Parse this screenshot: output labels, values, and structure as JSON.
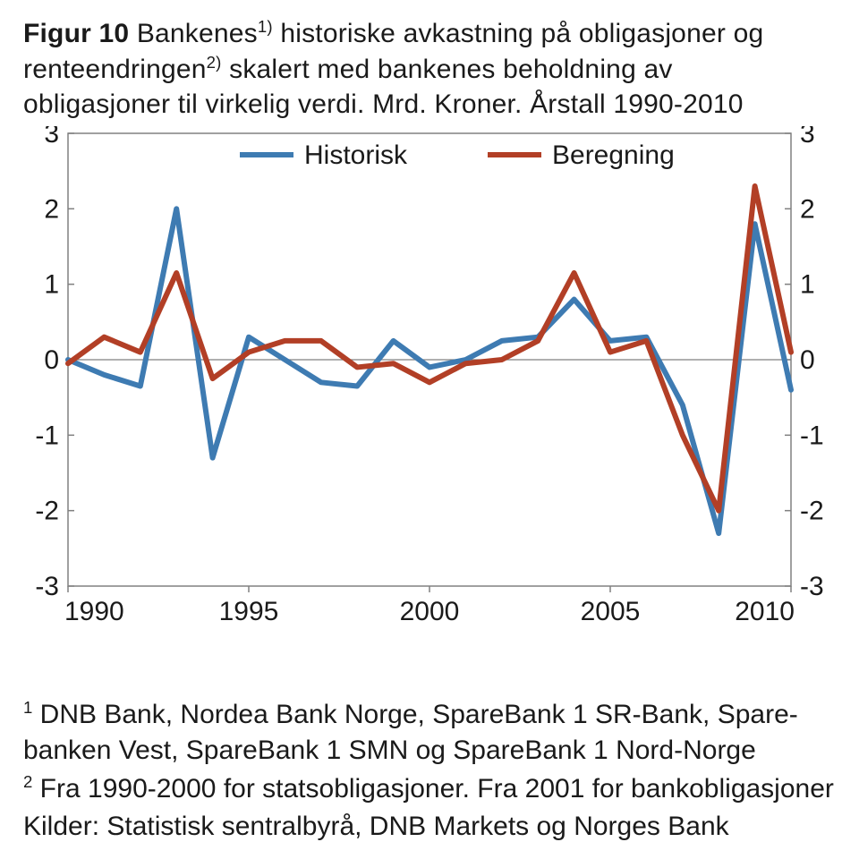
{
  "title": {
    "fig_label": "Figur 10",
    "line1_pre": " Bankenes",
    "sup1": "1)",
    "line1_post": " historiske avkastning på obligasjoner og",
    "line2_pre": "renteendringen",
    "sup2": "2)",
    "line2_post": " skalert med bankenes beholdning av",
    "line3": "obligasjoner til virkelig verdi. Mrd. Kroner. Årstall 1990-2010"
  },
  "chart": {
    "type": "line",
    "background_color": "#ffffff",
    "axis_color": "#808080",
    "zero_line_color": "#808080",
    "ylim_min": -3,
    "ylim_max": 3,
    "ytick_step": 1,
    "x_min": 1990,
    "x_max": 2010,
    "x_ticks": [
      1990,
      1995,
      2000,
      2005,
      2010
    ],
    "y_ticks": [
      3,
      2,
      1,
      0,
      -1,
      -2,
      -3
    ],
    "line_width": 6,
    "legend": {
      "items": [
        {
          "label": "Historisk",
          "color": "#3e7bb2"
        },
        {
          "label": "Beregning",
          "color": "#b23f26"
        }
      ]
    },
    "series": {
      "historisk": {
        "color": "#3e7bb2",
        "years": [
          1990,
          1991,
          1992,
          1993,
          1994,
          1995,
          1996,
          1997,
          1998,
          1999,
          2000,
          2001,
          2002,
          2003,
          2004,
          2005,
          2006,
          2007,
          2008,
          2009,
          2010
        ],
        "values": [
          0.0,
          -0.2,
          -0.35,
          2.0,
          -1.3,
          0.3,
          0.0,
          -0.3,
          -0.35,
          0.25,
          -0.1,
          0.0,
          0.25,
          0.3,
          0.8,
          0.25,
          0.3,
          -0.6,
          -2.3,
          1.8,
          -0.4
        ]
      },
      "beregning": {
        "color": "#b23f26",
        "years": [
          1990,
          1991,
          1992,
          1993,
          1994,
          1995,
          1996,
          1997,
          1998,
          1999,
          2000,
          2001,
          2002,
          2003,
          2004,
          2005,
          2006,
          2007,
          2008,
          2009,
          2010
        ],
        "values": [
          -0.05,
          0.3,
          0.1,
          1.15,
          -0.25,
          0.1,
          0.25,
          0.25,
          -0.1,
          -0.05,
          -0.3,
          -0.05,
          0.0,
          0.25,
          1.15,
          0.1,
          0.25,
          -1.0,
          -2.0,
          2.3,
          0.1
        ]
      }
    }
  },
  "footnotes": {
    "f1_sup": "1",
    "f1_text": " DNB Bank, Nordea Bank Norge, SpareBank 1 SR-Bank, Spare-banken Vest, SpareBank 1 SMN og SpareBank 1 Nord-Norge",
    "f2_sup": "2",
    "f2_text": " Fra 1990-2000 for statsobligasjoner. Fra 2001 for bankobligasjoner",
    "source": "Kilder: Statistisk sentralbyrå, DNB Markets og Norges Bank"
  }
}
